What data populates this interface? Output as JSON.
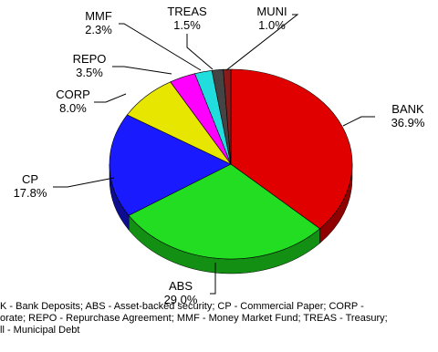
{
  "chart_data": {
    "type": "pie",
    "style": "3d",
    "slices": [
      {
        "code": "BANK",
        "label": "BANK",
        "pct_label": "36.9%",
        "value": 36.9,
        "color": "#e00000",
        "side_color": "#8f0000"
      },
      {
        "code": "ABS",
        "label": "ABS",
        "pct_label": "29.0%",
        "value": 29.0,
        "color": "#22dd22",
        "side_color": "#138f13"
      },
      {
        "code": "CP",
        "label": "CP",
        "pct_label": "17.8%",
        "value": 17.8,
        "color": "#1a1aff",
        "side_color": "#0d0d8f"
      },
      {
        "code": "CORP",
        "label": "CORP",
        "pct_label": "8.0%",
        "value": 8.0,
        "color": "#e6e600",
        "side_color": "#8f8f00"
      },
      {
        "code": "REPO",
        "label": "REPO",
        "pct_label": "3.5%",
        "value": 3.5,
        "color": "#ff00ff",
        "side_color": "#8f008f"
      },
      {
        "code": "MMF",
        "label": "MMF",
        "pct_label": "2.3%",
        "value": 2.3,
        "color": "#22dddd",
        "side_color": "#138f8f"
      },
      {
        "code": "TREAS",
        "label": "TREAS",
        "pct_label": "1.5%",
        "value": 1.5,
        "color": "#444444",
        "side_color": "#222222"
      },
      {
        "code": "MUNI",
        "label": "MUNI",
        "pct_label": "1.0%",
        "value": 1.0,
        "color": "#8b1a1a",
        "side_color": "#4f0c0c"
      }
    ]
  },
  "footnote": "K - Bank Deposits; ABS - Asset-backed security; CP - Commercial Paper; CORP -\norate; REPO - Repurchase Agreement; MMF - Money Market Fund; TREAS - Treasury;\nll - Municipal Debt"
}
